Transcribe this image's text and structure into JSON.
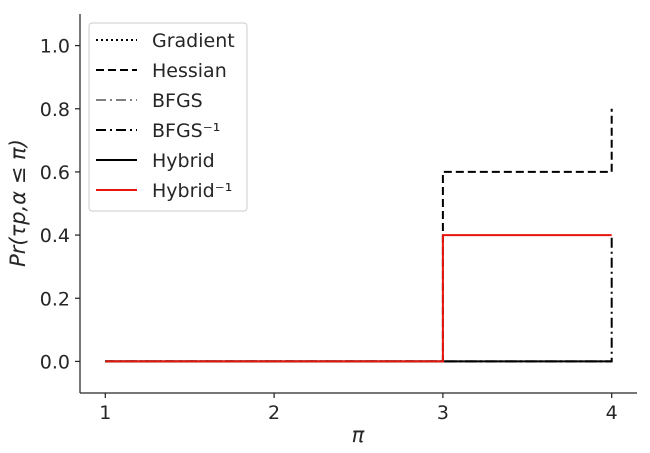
{
  "chart_data": {
    "type": "line",
    "step": true,
    "xlabel": "π",
    "ylabel": "Pr(τp,α ≤ π)",
    "xlim": [
      0.85,
      4.15
    ],
    "ylim": [
      -0.1,
      1.1
    ],
    "xticks": [
      1,
      2,
      3,
      4
    ],
    "yticks": [
      0.0,
      0.2,
      0.4,
      0.6,
      0.8,
      1.0
    ],
    "xtick_labels": [
      "1",
      "2",
      "3",
      "4"
    ],
    "ytick_labels": [
      "0.0",
      "0.2",
      "0.4",
      "0.6",
      "0.8",
      "1.0"
    ],
    "grid": false,
    "legend_position": "top-left",
    "series": [
      {
        "name": "Gradient",
        "style": "dotted",
        "color": "#000000",
        "x": [
          1,
          3,
          3,
          4,
          4
        ],
        "y": [
          0,
          0,
          0,
          0,
          0
        ]
      },
      {
        "name": "Hessian",
        "style": "dashed",
        "color": "#000000",
        "x": [
          1,
          3,
          3,
          4,
          4
        ],
        "y": [
          0,
          0,
          0.6,
          0.6,
          0.8
        ]
      },
      {
        "name": "BFGS",
        "style": "dashdot",
        "color": "#808080",
        "x": [
          1,
          3,
          3,
          4,
          4
        ],
        "y": [
          0,
          0,
          0,
          0,
          0
        ]
      },
      {
        "name": "BFGS⁻¹",
        "style": "dashdot",
        "color": "#000000",
        "x": [
          1,
          3,
          3,
          4,
          4
        ],
        "y": [
          0,
          0,
          0,
          0,
          0.4
        ]
      },
      {
        "name": "Hybrid",
        "style": "solid",
        "color": "#000000",
        "x": [
          1,
          3,
          3,
          4,
          4
        ],
        "y": [
          0,
          0,
          0,
          0,
          0
        ]
      },
      {
        "name": "Hybrid⁻¹",
        "style": "solid",
        "color": "#e8150c",
        "x": [
          1,
          3,
          3,
          4
        ],
        "y": [
          0,
          0,
          0.4,
          0.4
        ]
      }
    ]
  }
}
